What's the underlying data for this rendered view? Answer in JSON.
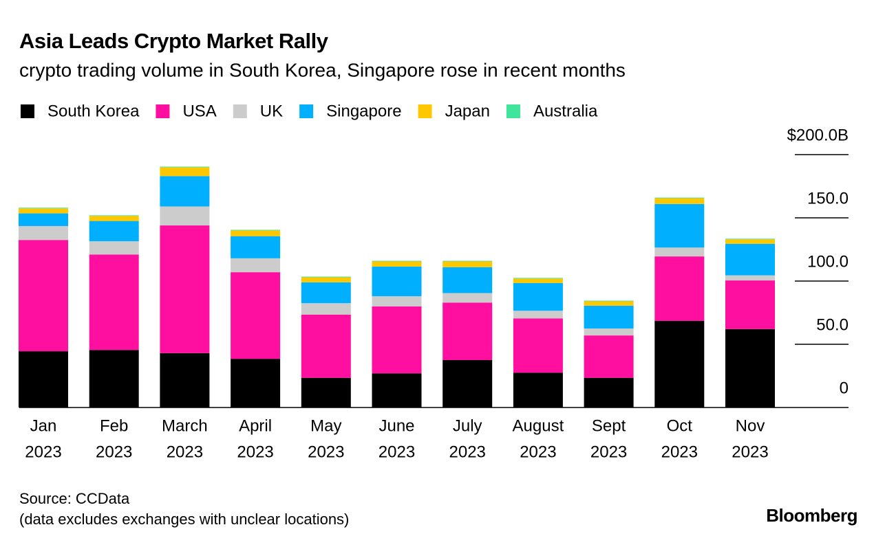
{
  "chart_data": {
    "type": "stacked-bar",
    "title": "Asia Leads Crypto Market Rally",
    "subtitle": "crypto trading volume in South Korea, Singapore rose in recent months",
    "categories": [
      [
        "Jan",
        "2023"
      ],
      [
        "Feb",
        "2023"
      ],
      [
        "March",
        "2023"
      ],
      [
        "April",
        "2023"
      ],
      [
        "May",
        "2023"
      ],
      [
        "June",
        "2023"
      ],
      [
        "July",
        "2023"
      ],
      [
        "August",
        "2023"
      ],
      [
        "Sept",
        "2023"
      ],
      [
        "Oct",
        "2023"
      ],
      [
        "Nov",
        "2023"
      ]
    ],
    "series": [
      {
        "name": "South Korea",
        "color": "#000000",
        "values": [
          44.5,
          45.5,
          43,
          38.5,
          23.5,
          27,
          37.5,
          27.5,
          23.5,
          68.5,
          62
        ]
      },
      {
        "name": "USA",
        "color": "#ff0f9f",
        "values": [
          88,
          75.5,
          101,
          68.5,
          50,
          53,
          45.5,
          43,
          33.5,
          51,
          38.5
        ]
      },
      {
        "name": "UK",
        "color": "#cccccc",
        "values": [
          11,
          10.5,
          15,
          11,
          9,
          8,
          7.5,
          6,
          5.5,
          7,
          4
        ]
      },
      {
        "name": "Singapore",
        "color": "#00b0ff",
        "values": [
          10,
          16,
          24,
          17.5,
          16.5,
          23.5,
          20.5,
          22,
          18,
          34.5,
          25
        ]
      },
      {
        "name": "Japan",
        "color": "#ffc700",
        "values": [
          4,
          4,
          7,
          4.5,
          4,
          4,
          4.5,
          3.5,
          3.5,
          4.5,
          3.5
        ]
      },
      {
        "name": "Australia",
        "color": "#3fe59a",
        "values": [
          0.5,
          0.5,
          0.5,
          0.5,
          0.5,
          0.5,
          0.5,
          0.5,
          0.5,
          0.5,
          0.5
        ]
      }
    ],
    "ylim": [
      0,
      200
    ],
    "yticks": [
      0,
      {
        "value": 50,
        "label": "50.0"
      },
      {
        "value": 100,
        "label": "100.0"
      },
      {
        "value": 150,
        "label": "150.0"
      },
      {
        "value": 200,
        "label": "$200.0B"
      }
    ],
    "source": "Source: CCData",
    "note": "(data excludes exchanges with unclear locations)",
    "brand": "Bloomberg"
  }
}
